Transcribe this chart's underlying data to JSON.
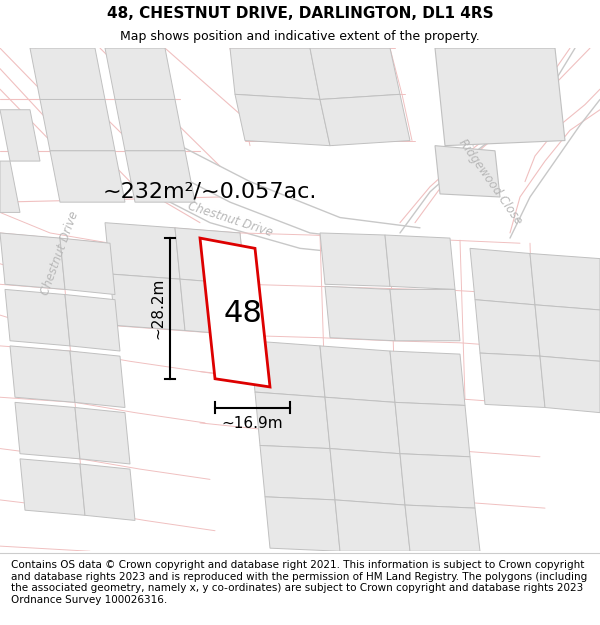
{
  "title_line1": "48, CHESTNUT DRIVE, DARLINGTON, DL1 4RS",
  "title_line2": "Map shows position and indicative extent of the property.",
  "footer_text": "Contains OS data © Crown copyright and database right 2021. This information is subject to Crown copyright and database rights 2023 and is reproduced with the permission of HM Land Registry. The polygons (including the associated geometry, namely x, y co-ordinates) are subject to Crown copyright and database rights 2023 Ordnance Survey 100026316.",
  "area_label": "~232m²/~0.057ac.",
  "width_label": "~16.9m",
  "height_label": "~28.2m",
  "number_label": "48",
  "bg_color": "#ffffff",
  "map_bg": "#f8f8f8",
  "road_color": "#f0c0c0",
  "road_color2": "#e8a8a8",
  "gray_road_color": "#c8c8c8",
  "plot_outline_color": "#dd0000",
  "plot_fill_color": "#ffffff",
  "block_fill_color": "#e8e8e8",
  "block_edge_color": "#c0c0c0",
  "title_fontsize": 11,
  "subtitle_fontsize": 9,
  "footer_fontsize": 7.5,
  "area_fontsize": 16,
  "label_fontsize": 11,
  "number_fontsize": 22,
  "road_label_color": "#b8b8b8",
  "chestnut_drive_label": "Chestnut Drive",
  "ridgewood_close_label": "Ridgewood Close"
}
